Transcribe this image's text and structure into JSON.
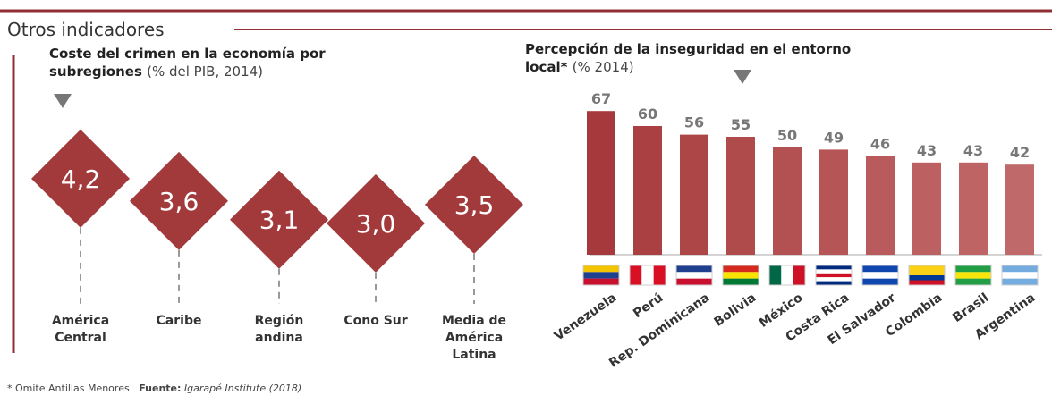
{
  "header": {
    "title": "Otros indicadores"
  },
  "chart_data": [
    {
      "type": "diamond",
      "title": "Coste del crimen en la economía por subregiones",
      "subtitle": "(% del PIB, 2014)",
      "categories": [
        "América Central",
        "Caribe",
        "Región andina",
        "Cono Sur",
        "Media de América Latina"
      ],
      "values": [
        4.2,
        3.6,
        3.1,
        3.0,
        3.5
      ],
      "value_labels": [
        "4,2",
        "3,6",
        "3,1",
        "3,0",
        "3,5"
      ],
      "color": "#a23a3c"
    },
    {
      "type": "bar",
      "title": "Percepción de la inseguridad en el entorno local*",
      "subtitle": "(% 2014)",
      "categories": [
        "Venezuela",
        "Perú",
        "Rep. Dominicana",
        "Bolivia",
        "México",
        "Costa Rica",
        "El Salvador",
        "Colombia",
        "Brasil",
        "Argentina"
      ],
      "values": [
        67,
        60,
        56,
        55,
        50,
        49,
        46,
        43,
        43,
        42
      ],
      "colors": [
        "#a6393b",
        "#aa4042",
        "#ad4647",
        "#b04b4c",
        "#b35051",
        "#b65556",
        "#b95b5c",
        "#bc6061",
        "#be6465",
        "#c0696a"
      ]
    }
  ],
  "footer": {
    "note": "* Omite Antillas Menores",
    "source_label": "Fuente:",
    "source": "Igarapé Institute (2018)"
  }
}
